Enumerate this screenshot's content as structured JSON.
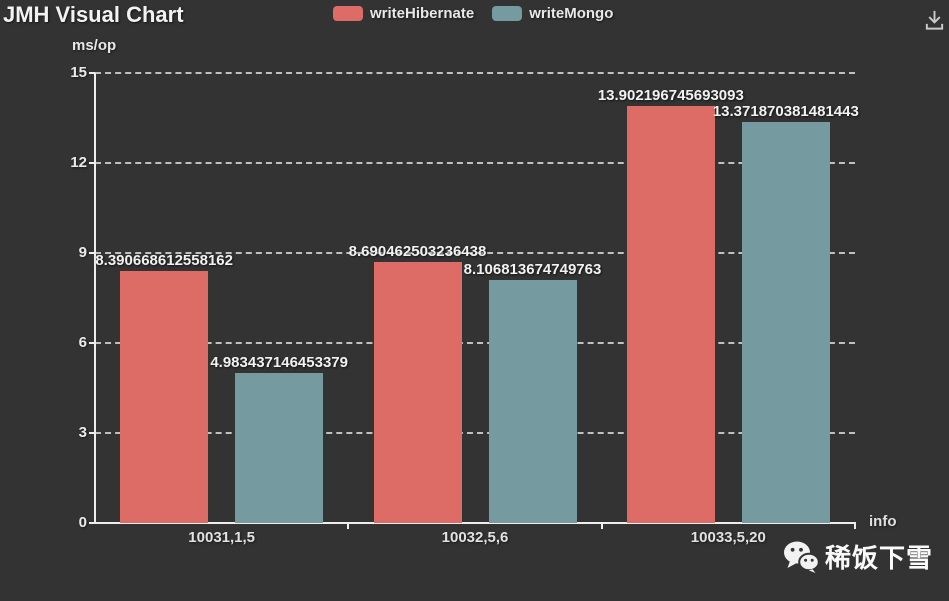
{
  "title": "JMH Visual Chart",
  "legend": {
    "items": [
      {
        "label": "writeHibernate",
        "color": "#dd6b66"
      },
      {
        "label": "writeMongo",
        "color": "#759aa0"
      }
    ]
  },
  "toolbar": {
    "download_icon": "save-as-image"
  },
  "watermark": {
    "icon": "wechat-logo",
    "text": "稀饭下雪"
  },
  "chart_data": {
    "type": "bar",
    "title": "JMH Visual Chart",
    "xlabel": "info",
    "ylabel": "ms/op",
    "categories": [
      "10031,1,5",
      "10032,5,6",
      "10033,5,20"
    ],
    "series": [
      {
        "name": "writeHibernate",
        "color": "#dd6b66",
        "values": [
          8.390668612558162,
          8.690462503236438,
          13.902196745693093
        ],
        "labels": [
          "8.390668612558162",
          "8.690462503236438",
          "13.902196745693093"
        ]
      },
      {
        "name": "writeMongo",
        "color": "#759aa0",
        "values": [
          4.983437146453379,
          8.106813674749763,
          13.371870381481443
        ],
        "labels": [
          "4.983437146453379",
          "8.106813674749763",
          "13.371870381481443"
        ]
      }
    ],
    "ylim": [
      0,
      15
    ],
    "yticks": [
      0,
      3,
      6,
      9,
      12,
      15
    ],
    "grid": "horizontal-dashed",
    "legend_position": "top-center",
    "colors": {
      "background": "#333333",
      "text": "#eeeeee",
      "axis": "#eeeeee",
      "grid": "#c0c0c0"
    }
  }
}
